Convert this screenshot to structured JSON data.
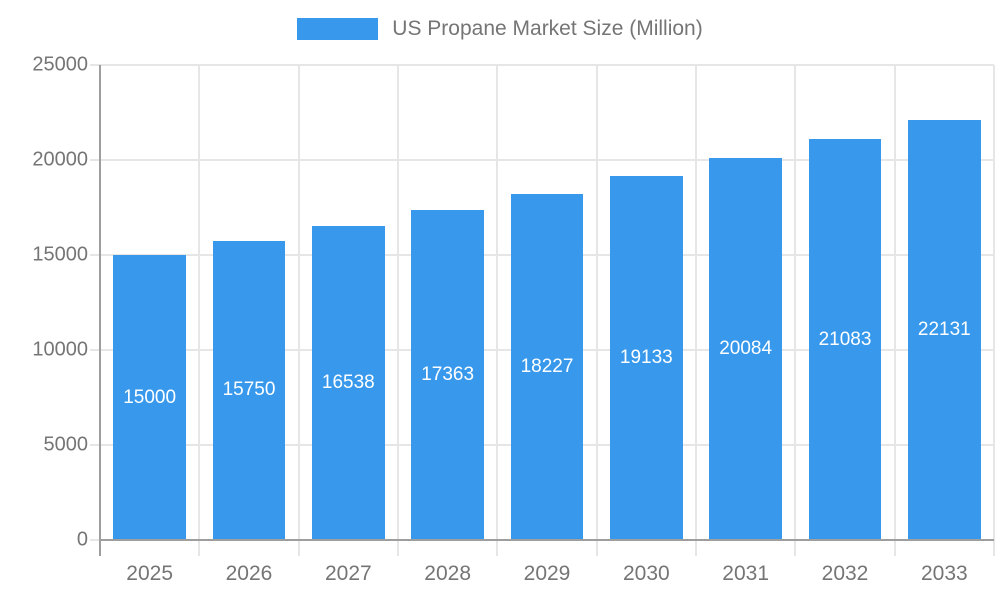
{
  "legend": {
    "label": "US Propane Market Size (Million)"
  },
  "colors": {
    "bar": "#3899EC",
    "grid": "#E6E6E6",
    "axis": "#9E9E9E",
    "tick_text": "#757575",
    "value_label_text": "#FFFFFF",
    "background": "#FFFFFF"
  },
  "chart_data": {
    "type": "bar",
    "title": "US Propane Market Size (Million)",
    "categories": [
      "2025",
      "2026",
      "2027",
      "2028",
      "2029",
      "2030",
      "2031",
      "2032",
      "2033"
    ],
    "values": [
      15000,
      15750,
      16538,
      17363,
      18227,
      19133,
      20084,
      21083,
      22131
    ],
    "xlabel": "",
    "ylabel": "",
    "ylim": [
      0,
      25000
    ],
    "ytick_step": 5000,
    "yticks": [
      0,
      5000,
      10000,
      15000,
      20000,
      25000
    ],
    "grid": true,
    "legend_position": "top",
    "value_label_position": "inside-center"
  }
}
